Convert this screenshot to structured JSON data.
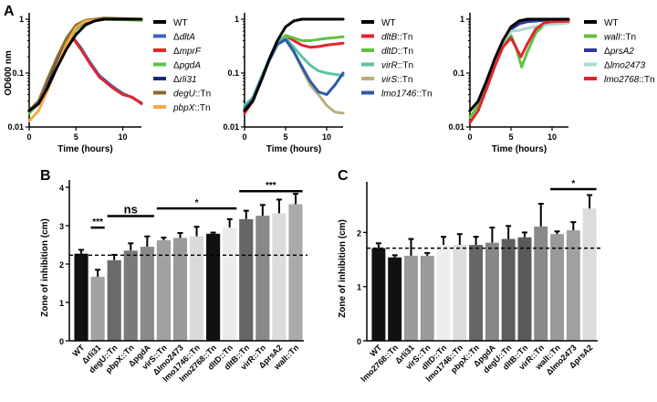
{
  "panels": {
    "a": "A",
    "b": "B",
    "c": "C"
  },
  "chart_data": [
    {
      "type": "line",
      "panel": "A",
      "yscale": "log",
      "xlabel": "Time (hours)",
      "ylabel": "OD600 nm",
      "xlim": [
        0,
        12
      ],
      "ylim": [
        0.01,
        1.2
      ],
      "xticks": [
        "0",
        "5",
        "10"
      ],
      "yticks": [
        "0.01",
        "0.1",
        "1"
      ],
      "series": [
        {
          "name": "ΔdltA",
          "color": "#3a64c8",
          "points": [
            [
              0,
              0.02
            ],
            [
              1,
              0.03
            ],
            [
              2,
              0.07
            ],
            [
              3,
              0.17
            ],
            [
              4,
              0.38
            ],
            [
              4.7,
              0.45
            ],
            [
              5.5,
              0.3
            ],
            [
              6.5,
              0.16
            ],
            [
              7.5,
              0.09
            ],
            [
              9,
              0.055
            ],
            [
              10,
              0.042
            ],
            [
              11,
              0.035
            ],
            [
              12,
              0.028
            ]
          ]
        },
        {
          "name": "ΔmprF",
          "color": "#e0262c",
          "points": [
            [
              0,
              0.02
            ],
            [
              1,
              0.03
            ],
            [
              2,
              0.07
            ],
            [
              3,
              0.17
            ],
            [
              4,
              0.38
            ],
            [
              4.7,
              0.44
            ],
            [
              5.5,
              0.28
            ],
            [
              6.5,
              0.15
            ],
            [
              7.5,
              0.085
            ],
            [
              9,
              0.052
            ],
            [
              10,
              0.04
            ],
            [
              11,
              0.036
            ],
            [
              12,
              0.027
            ]
          ]
        },
        {
          "name": "ΔpgdA",
          "color": "#63c042",
          "points": [
            [
              0,
              0.018
            ],
            [
              1,
              0.027
            ],
            [
              2,
              0.06
            ],
            [
              3,
              0.15
            ],
            [
              4,
              0.35
            ],
            [
              5,
              0.65
            ],
            [
              6,
              0.88
            ],
            [
              8,
              1.0
            ],
            [
              12,
              0.95
            ]
          ]
        },
        {
          "name": "Δrli31",
          "color": "#1c2a7a",
          "points": [
            [
              0,
              0.02
            ],
            [
              1,
              0.03
            ],
            [
              2,
              0.07
            ],
            [
              3,
              0.17
            ],
            [
              4,
              0.38
            ],
            [
              5,
              0.7
            ],
            [
              6,
              0.9
            ],
            [
              8,
              1.0
            ],
            [
              12,
              1.0
            ]
          ]
        },
        {
          "name": "degU::Tn",
          "color": "#8a6a2e",
          "points": [
            [
              0,
              0.02
            ],
            [
              1,
              0.03
            ],
            [
              2,
              0.08
            ],
            [
              3,
              0.2
            ],
            [
              4,
              0.45
            ],
            [
              5,
              0.78
            ],
            [
              6,
              0.95
            ],
            [
              8,
              1.05
            ],
            [
              12,
              1.0
            ]
          ]
        },
        {
          "name": "pbpX::Tn",
          "color": "#f4a94a",
          "points": [
            [
              0,
              0.013
            ],
            [
              1,
              0.02
            ],
            [
              2,
              0.05
            ],
            [
              3,
              0.14
            ],
            [
              4,
              0.35
            ],
            [
              5,
              0.7
            ],
            [
              6,
              0.92
            ],
            [
              8,
              1.0
            ],
            [
              12,
              1.0
            ]
          ]
        },
        {
          "name": "WT",
          "color": "#000000",
          "points": [
            [
              0,
              0.02
            ],
            [
              1,
              0.027
            ],
            [
              2,
              0.055
            ],
            [
              3,
              0.13
            ],
            [
              4,
              0.28
            ],
            [
              5,
              0.52
            ],
            [
              6,
              0.78
            ],
            [
              7,
              0.93
            ],
            [
              8,
              1.0
            ],
            [
              12,
              1.0
            ]
          ]
        }
      ]
    },
    {
      "type": "line",
      "panel": "A",
      "yscale": "log",
      "xlabel": "Time (hours)",
      "xlim": [
        0,
        12
      ],
      "ylim": [
        0.01,
        1.2
      ],
      "xticks": [
        "0",
        "5",
        "10"
      ],
      "yticks": [
        "0.01",
        "0.1",
        "1"
      ],
      "series": [
        {
          "name": "dltB::Tn",
          "color": "#e0262c",
          "points": [
            [
              0,
              0.018
            ],
            [
              1,
              0.03
            ],
            [
              2,
              0.07
            ],
            [
              3,
              0.17
            ],
            [
              4,
              0.35
            ],
            [
              5,
              0.5
            ],
            [
              6,
              0.4
            ],
            [
              7,
              0.33
            ],
            [
              8,
              0.3
            ],
            [
              9,
              0.31
            ],
            [
              10,
              0.33
            ],
            [
              12,
              0.36
            ]
          ]
        },
        {
          "name": "dltD::Tn",
          "color": "#63c042",
          "points": [
            [
              0,
              0.025
            ],
            [
              1,
              0.035
            ],
            [
              2,
              0.08
            ],
            [
              3,
              0.18
            ],
            [
              4,
              0.37
            ],
            [
              5,
              0.5
            ],
            [
              6,
              0.45
            ],
            [
              7,
              0.4
            ],
            [
              8,
              0.4
            ],
            [
              9,
              0.42
            ],
            [
              10,
              0.44
            ],
            [
              12,
              0.47
            ]
          ]
        },
        {
          "name": "virR::Tn",
          "color": "#5cc4a2",
          "points": [
            [
              0,
              0.025
            ],
            [
              1,
              0.035
            ],
            [
              2,
              0.08
            ],
            [
              3,
              0.18
            ],
            [
              4,
              0.36
            ],
            [
              5,
              0.45
            ],
            [
              6,
              0.3
            ],
            [
              7,
              0.2
            ],
            [
              8,
              0.14
            ],
            [
              9,
              0.11
            ],
            [
              10,
              0.1
            ],
            [
              12,
              0.09
            ]
          ]
        },
        {
          "name": "virS::Tn",
          "color": "#b8b07e",
          "points": [
            [
              0,
              0.022
            ],
            [
              1,
              0.032
            ],
            [
              2,
              0.075
            ],
            [
              3,
              0.17
            ],
            [
              4,
              0.34
            ],
            [
              5,
              0.42
            ],
            [
              6,
              0.25
            ],
            [
              7,
              0.12
            ],
            [
              8,
              0.06
            ],
            [
              9,
              0.04
            ],
            [
              10,
              0.025
            ],
            [
              11,
              0.019
            ],
            [
              12,
              0.018
            ]
          ]
        },
        {
          "name": "lmo1746::Tn",
          "color": "#2e5aa8",
          "points": [
            [
              0,
              0.022
            ],
            [
              1,
              0.032
            ],
            [
              2,
              0.075
            ],
            [
              3,
              0.17
            ],
            [
              4,
              0.34
            ],
            [
              5,
              0.42
            ],
            [
              6,
              0.25
            ],
            [
              7,
              0.13
            ],
            [
              8,
              0.07
            ],
            [
              9,
              0.045
            ],
            [
              10,
              0.04
            ],
            [
              11,
              0.06
            ],
            [
              12,
              0.1
            ]
          ]
        },
        {
          "name": "WT",
          "color": "#000000",
          "points": [
            [
              0,
              0.02
            ],
            [
              1,
              0.03
            ],
            [
              2,
              0.07
            ],
            [
              3,
              0.18
            ],
            [
              4,
              0.4
            ],
            [
              5,
              0.72
            ],
            [
              6,
              0.93
            ],
            [
              7,
              1.0
            ],
            [
              12,
              1.0
            ]
          ]
        }
      ]
    },
    {
      "type": "line",
      "panel": "A",
      "yscale": "log",
      "xlabel": "Time (hours)",
      "xlim": [
        0,
        12
      ],
      "ylim": [
        0.01,
        1.2
      ],
      "xticks": [
        "0",
        "5",
        "10"
      ],
      "yticks": [
        "0.01",
        "0.1",
        "1"
      ],
      "series": [
        {
          "name": "walI::Tn",
          "color": "#63c042",
          "points": [
            [
              0,
              0.015
            ],
            [
              1,
              0.025
            ],
            [
              2,
              0.06
            ],
            [
              3,
              0.15
            ],
            [
              4,
              0.33
            ],
            [
              5,
              0.5
            ],
            [
              5.6,
              0.3
            ],
            [
              6.3,
              0.13
            ],
            [
              7,
              0.25
            ],
            [
              8,
              0.55
            ],
            [
              9,
              0.78
            ],
            [
              10,
              0.88
            ],
            [
              12,
              0.92
            ]
          ]
        },
        {
          "name": "ΔprsA2",
          "color": "#2a3a9a",
          "points": [
            [
              0,
              0.02
            ],
            [
              1,
              0.03
            ],
            [
              2,
              0.07
            ],
            [
              3,
              0.17
            ],
            [
              4,
              0.38
            ],
            [
              5,
              0.65
            ],
            [
              6,
              0.82
            ],
            [
              7,
              0.9
            ],
            [
              9,
              0.95
            ],
            [
              12,
              1.0
            ]
          ]
        },
        {
          "name": "Δlmo2473",
          "color": "#a8dcd0",
          "points": [
            [
              0,
              0.02
            ],
            [
              1,
              0.03
            ],
            [
              2,
              0.07
            ],
            [
              3,
              0.17
            ],
            [
              4,
              0.38
            ],
            [
              5,
              0.6
            ],
            [
              6,
              0.62
            ],
            [
              7,
              0.68
            ],
            [
              9,
              0.78
            ],
            [
              12,
              0.85
            ]
          ]
        },
        {
          "name": "lmo2768::Tn",
          "color": "#e0262c",
          "points": [
            [
              0,
              0.012
            ],
            [
              1,
              0.02
            ],
            [
              2,
              0.05
            ],
            [
              3,
              0.13
            ],
            [
              4,
              0.3
            ],
            [
              5,
              0.45
            ],
            [
              5.6,
              0.3
            ],
            [
              6.2,
              0.2
            ],
            [
              7,
              0.35
            ],
            [
              8,
              0.65
            ],
            [
              9,
              0.85
            ],
            [
              10,
              0.9
            ],
            [
              12,
              0.92
            ]
          ]
        },
        {
          "name": "WT",
          "color": "#000000",
          "points": [
            [
              0,
              0.02
            ],
            [
              1,
              0.03
            ],
            [
              2,
              0.07
            ],
            [
              3,
              0.18
            ],
            [
              4,
              0.4
            ],
            [
              5,
              0.72
            ],
            [
              6,
              0.93
            ],
            [
              7,
              1.0
            ],
            [
              12,
              1.0
            ]
          ]
        }
      ]
    },
    {
      "type": "bar",
      "panel": "B",
      "ylabel": "Zone of inhibition (cm)",
      "ylim": [
        0,
        4
      ],
      "yticks": [
        "0",
        "1",
        "2",
        "3",
        "4"
      ],
      "reference_line": 2.23,
      "categories": [
        "WT",
        "Δrli31",
        "degU::Tn",
        "pbpX::Tn",
        "ΔpgdA",
        "virS::Tn",
        "Δlmo2473",
        "lmo1746::Tn",
        "lmo2768::Tn",
        "dltD::Tn",
        "dltB::Tn",
        "virR::Tn",
        "ΔprsA2",
        "walI::Tn"
      ],
      "values": [
        2.27,
        1.67,
        2.1,
        2.35,
        2.45,
        2.62,
        2.68,
        2.72,
        2.79,
        2.95,
        3.17,
        3.26,
        3.32,
        3.56
      ],
      "errors": [
        0.1,
        0.18,
        0.14,
        0.19,
        0.27,
        0.07,
        0.13,
        0.25,
        0.03,
        0.22,
        0.22,
        0.28,
        0.36,
        0.27
      ],
      "colors": [
        "#111111",
        "#a2a2a2",
        "#6a6a6a",
        "#7a7a7a",
        "#8a8a8a",
        "#a0a0a0",
        "#9a9a9a",
        "#dadada",
        "#111111",
        "#ebebeb",
        "#666666",
        "#888888",
        "#dcdcdc",
        "#aaaaaa"
      ],
      "significance": [
        {
          "label": "***",
          "from": 1,
          "to": 1,
          "y": 2.95
        },
        {
          "label": "ns",
          "from": 2,
          "to": 4,
          "y": 3.25
        },
        {
          "label": "*",
          "from": 5,
          "to": 9,
          "y": 3.45
        },
        {
          "label": "***",
          "from": 10,
          "to": 13,
          "y": 3.9
        }
      ]
    },
    {
      "type": "bar",
      "panel": "C",
      "ylabel": "Zone of inhibition (cm)",
      "ylim": [
        0,
        2.8
      ],
      "yticks": [
        "0",
        "1",
        "2"
      ],
      "reference_line": 1.71,
      "categories": [
        "WT",
        "lmo2768::Tn",
        "Δrli31",
        "virS::Tn",
        "dltD::Tn",
        "lmo1746::Tn",
        "pbpX::Tn",
        "ΔpgdA",
        "degU::Tn",
        "dltB::Tn",
        "virR::Tn",
        "walI::Tn",
        "Δlmo2473",
        "ΔprsA2"
      ],
      "values": [
        1.71,
        1.54,
        1.57,
        1.57,
        1.77,
        1.77,
        1.77,
        1.81,
        1.88,
        1.91,
        2.11,
        1.97,
        2.04,
        2.44
      ],
      "errors": [
        0.09,
        0.04,
        0.31,
        0.05,
        0.15,
        0.2,
        0.15,
        0.28,
        0.24,
        0.09,
        0.42,
        0.05,
        0.15,
        0.25
      ],
      "colors": [
        "#111111",
        "#111111",
        "#9a9a9a",
        "#9a9a9a",
        "#eeeeee",
        "#dddddd",
        "#666666",
        "#888888",
        "#5e5e5e",
        "#5a5a5a",
        "#8a8a8a",
        "#9a9a9a",
        "#a0a0a0",
        "#dcdcdc"
      ],
      "significance": [
        {
          "label": "*",
          "from": 11,
          "to": 13,
          "y": 2.8
        }
      ]
    }
  ]
}
